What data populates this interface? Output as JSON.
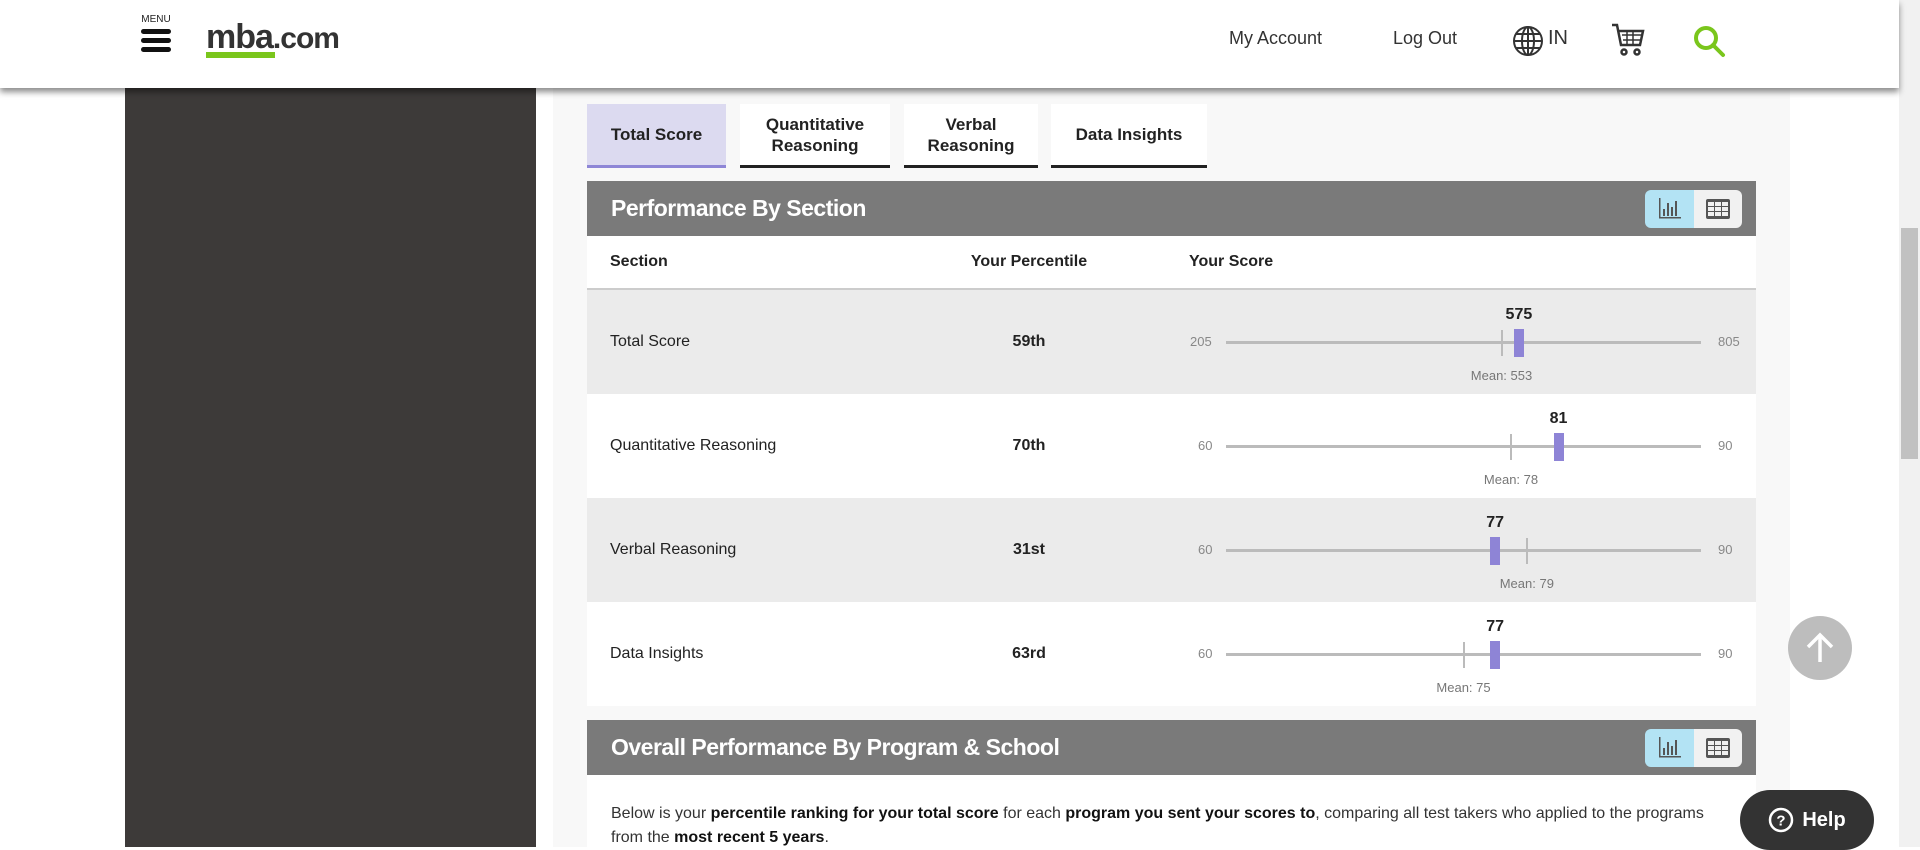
{
  "header": {
    "menu_label": "MENU",
    "logo_main": "mba",
    "logo_suffix": ".com",
    "my_account": "My Account",
    "log_out": "Log Out",
    "region": "IN",
    "accent": "#7ac61c"
  },
  "tabs": [
    {
      "label": "Total Score",
      "active": true
    },
    {
      "label": "Quantitative Reasoning"
    },
    {
      "label": "Verbal Reasoning"
    },
    {
      "label": "Data Insights"
    }
  ],
  "section1": {
    "title": "Performance By Section",
    "columns": [
      "Section",
      "Your Percentile",
      "Your Score"
    ],
    "rows": [
      {
        "section": "Total Score",
        "percentile": "59th",
        "score": 575,
        "mean": 553,
        "mean_label": "Mean: 553",
        "min": 205,
        "max": 805
      },
      {
        "section": "Quantitative Reasoning",
        "percentile": "70th",
        "score": 81,
        "mean": 78,
        "mean_label": "Mean: 78",
        "min": 60,
        "max": 90
      },
      {
        "section": "Verbal Reasoning",
        "percentile": "31st",
        "score": 77,
        "mean": 79,
        "mean_label": "Mean: 79",
        "min": 60,
        "max": 90
      },
      {
        "section": "Data Insights",
        "percentile": "63rd",
        "score": 77,
        "mean": 75,
        "mean_label": "Mean: 75",
        "min": 60,
        "max": 90
      }
    ]
  },
  "section2": {
    "title": "Overall Performance By Program & School",
    "para": [
      "Below is your ",
      "percentile ranking for your total score",
      " for each ",
      "program you sent your scores to",
      ", comparing all test takers who applied to the programs from the ",
      "most recent 5 years",
      "."
    ]
  },
  "help_label": "Help",
  "colors": {
    "score_bar": "#8e84d6",
    "active_tab": "#dcdaf0",
    "section_header": "#7a7a7a"
  }
}
